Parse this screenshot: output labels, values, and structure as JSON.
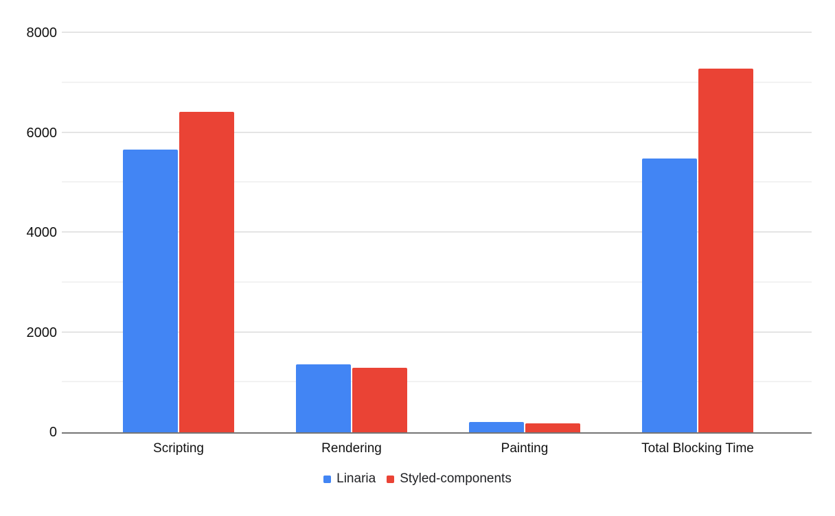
{
  "chart_data": {
    "type": "bar",
    "title": "",
    "categories": [
      "Scripting",
      "Rendering",
      "Painting",
      "Total Blocking Time"
    ],
    "series": [
      {
        "name": "Linaria",
        "color": "#4285F4",
        "values": [
          5660,
          1360,
          205,
          5490
        ]
      },
      {
        "name": "Styled-components",
        "color": "#EA4335",
        "values": [
          6420,
          1290,
          180,
          7290
        ]
      }
    ],
    "xlabel": "",
    "ylabel": "",
    "ylim": [
      0,
      8000
    ],
    "yticks": [
      0,
      2000,
      4000,
      6000,
      8000
    ],
    "ytick_interval": 2000,
    "minor_gridline_interval": 1000,
    "grid": true,
    "legend_position": "bottom"
  },
  "colors": {
    "background": "#ffffff",
    "axis_line": "#757575",
    "major_gridline": "#e4e4e4",
    "minor_gridline": "#f2f2f2",
    "axis_text": "#111111",
    "legend_text": "#202124",
    "series_linaria": "#4285F4",
    "series_styled_components": "#EA4335"
  }
}
